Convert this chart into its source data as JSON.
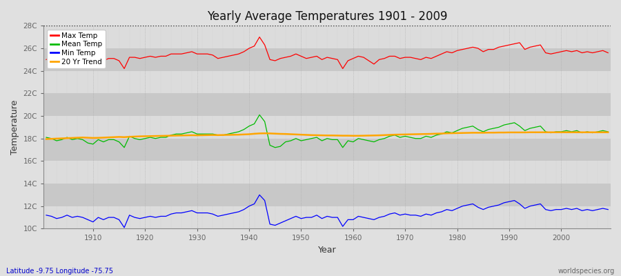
{
  "title": "Yearly Average Temperatures 1901 - 2009",
  "xlabel": "Year",
  "ylabel": "Temperature",
  "subtitle": "Latitude -9.75 Longitude -75.75",
  "credit": "worldspecies.org",
  "year_start": 1901,
  "year_end": 2009,
  "ylim": [
    10,
    28
  ],
  "yticks": [
    10,
    12,
    14,
    16,
    18,
    20,
    22,
    24,
    26,
    28
  ],
  "ytick_labels": [
    "10C",
    "12C",
    "14C",
    "16C",
    "18C",
    "20C",
    "22C",
    "24C",
    "26C",
    "28C"
  ],
  "xticks": [
    1910,
    1920,
    1930,
    1940,
    1950,
    1960,
    1970,
    1980,
    1990,
    2000
  ],
  "colors": {
    "max": "#ff0000",
    "mean": "#00bb00",
    "min": "#0000ff",
    "trend": "#ffa500",
    "bg_outer": "#e0e0e0",
    "bg_inner_light": "#dcdcdc",
    "bg_inner_dark": "#c8c8c8",
    "grid_v": "#bbbbbb",
    "spine": "#888888"
  },
  "max_temp": [
    25.0,
    25.2,
    25.0,
    25.1,
    25.3,
    25.2,
    25.2,
    25.3,
    24.5,
    24.6,
    25.0,
    24.9,
    25.1,
    25.1,
    24.9,
    24.2,
    25.2,
    25.2,
    25.1,
    25.2,
    25.3,
    25.2,
    25.3,
    25.3,
    25.5,
    25.5,
    25.5,
    25.6,
    25.7,
    25.5,
    25.5,
    25.5,
    25.4,
    25.1,
    25.2,
    25.3,
    25.4,
    25.5,
    25.7,
    26.0,
    26.2,
    27.0,
    26.3,
    25.0,
    24.9,
    25.1,
    25.2,
    25.3,
    25.5,
    25.3,
    25.1,
    25.2,
    25.3,
    25.0,
    25.2,
    25.1,
    25.0,
    24.2,
    24.9,
    25.1,
    25.3,
    25.2,
    24.9,
    24.6,
    25.0,
    25.1,
    25.3,
    25.3,
    25.1,
    25.2,
    25.2,
    25.1,
    25.0,
    25.2,
    25.1,
    25.3,
    25.5,
    25.7,
    25.6,
    25.8,
    25.9,
    26.0,
    26.1,
    26.0,
    25.7,
    25.9,
    25.9,
    26.1,
    26.2,
    26.3,
    26.4,
    26.5,
    25.9,
    26.1,
    26.2,
    26.3,
    25.6,
    25.5,
    25.6,
    25.7,
    25.8,
    25.7,
    25.8,
    25.6,
    25.7,
    25.6,
    25.7,
    25.8,
    25.6
  ],
  "mean_temp": [
    18.1,
    18.0,
    17.8,
    17.9,
    18.1,
    17.9,
    18.0,
    17.9,
    17.6,
    17.5,
    17.9,
    17.7,
    17.9,
    17.9,
    17.7,
    17.2,
    18.2,
    18.0,
    17.9,
    18.0,
    18.1,
    18.0,
    18.1,
    18.1,
    18.3,
    18.4,
    18.4,
    18.5,
    18.6,
    18.4,
    18.4,
    18.4,
    18.4,
    18.3,
    18.3,
    18.4,
    18.5,
    18.6,
    18.8,
    19.1,
    19.3,
    20.1,
    19.5,
    17.4,
    17.2,
    17.3,
    17.7,
    17.8,
    18.0,
    17.8,
    17.9,
    18.0,
    18.1,
    17.8,
    18.0,
    17.9,
    17.9,
    17.2,
    17.8,
    17.7,
    18.0,
    17.9,
    17.8,
    17.7,
    17.9,
    18.0,
    18.2,
    18.3,
    18.1,
    18.2,
    18.1,
    18.0,
    18.0,
    18.2,
    18.1,
    18.3,
    18.4,
    18.6,
    18.5,
    18.7,
    18.9,
    19.0,
    19.1,
    18.8,
    18.6,
    18.8,
    18.9,
    19.0,
    19.2,
    19.3,
    19.4,
    19.1,
    18.7,
    18.9,
    19.0,
    19.1,
    18.6,
    18.5,
    18.6,
    18.6,
    18.7,
    18.6,
    18.7,
    18.5,
    18.6,
    18.5,
    18.6,
    18.7,
    18.6
  ],
  "min_temp": [
    11.2,
    11.1,
    10.9,
    11.0,
    11.2,
    11.0,
    11.1,
    11.0,
    10.8,
    10.6,
    11.0,
    10.8,
    11.0,
    11.0,
    10.8,
    10.1,
    11.2,
    11.0,
    10.9,
    11.0,
    11.1,
    11.0,
    11.1,
    11.1,
    11.3,
    11.4,
    11.4,
    11.5,
    11.6,
    11.4,
    11.4,
    11.4,
    11.3,
    11.1,
    11.2,
    11.3,
    11.4,
    11.5,
    11.7,
    12.0,
    12.2,
    13.0,
    12.5,
    10.4,
    10.3,
    10.5,
    10.7,
    10.9,
    11.1,
    10.9,
    11.0,
    11.0,
    11.2,
    10.9,
    11.1,
    11.0,
    11.0,
    10.2,
    10.8,
    10.8,
    11.1,
    11.0,
    10.9,
    10.8,
    11.0,
    11.1,
    11.3,
    11.4,
    11.2,
    11.3,
    11.2,
    11.2,
    11.1,
    11.3,
    11.2,
    11.4,
    11.5,
    11.7,
    11.6,
    11.8,
    12.0,
    12.1,
    12.2,
    11.9,
    11.7,
    11.9,
    12.0,
    12.1,
    12.3,
    12.4,
    12.5,
    12.2,
    11.8,
    12.0,
    12.1,
    12.2,
    11.7,
    11.6,
    11.7,
    11.7,
    11.8,
    11.7,
    11.8,
    11.6,
    11.7,
    11.6,
    11.7,
    11.8,
    11.7
  ],
  "trend_temp": [
    17.95,
    17.97,
    17.99,
    18.01,
    18.03,
    18.05,
    18.07,
    18.09,
    18.07,
    18.05,
    18.06,
    18.08,
    18.1,
    18.12,
    18.14,
    18.12,
    18.15,
    18.17,
    18.19,
    18.2,
    18.21,
    18.22,
    18.23,
    18.24,
    18.25,
    18.26,
    18.27,
    18.28,
    18.29,
    18.28,
    18.29,
    18.3,
    18.31,
    18.3,
    18.31,
    18.32,
    18.33,
    18.34,
    18.36,
    18.38,
    18.42,
    18.45,
    18.46,
    18.45,
    18.43,
    18.41,
    18.4,
    18.38,
    18.36,
    18.34,
    18.32,
    18.3,
    18.29,
    18.28,
    18.27,
    18.27,
    18.26,
    18.25,
    18.25,
    18.24,
    18.24,
    18.25,
    18.26,
    18.27,
    18.28,
    18.3,
    18.32,
    18.34,
    18.35,
    18.36,
    18.37,
    18.38,
    18.39,
    18.4,
    18.41,
    18.43,
    18.44,
    18.46,
    18.47,
    18.48,
    18.49,
    18.5,
    18.51,
    18.51,
    18.51,
    18.52,
    18.52,
    18.53,
    18.53,
    18.54,
    18.54,
    18.54,
    18.54,
    18.55,
    18.55,
    18.55,
    18.55,
    18.55,
    18.55,
    18.55,
    18.55,
    18.55,
    18.55,
    18.55,
    18.55,
    18.55,
    18.55,
    18.55,
    18.55
  ]
}
